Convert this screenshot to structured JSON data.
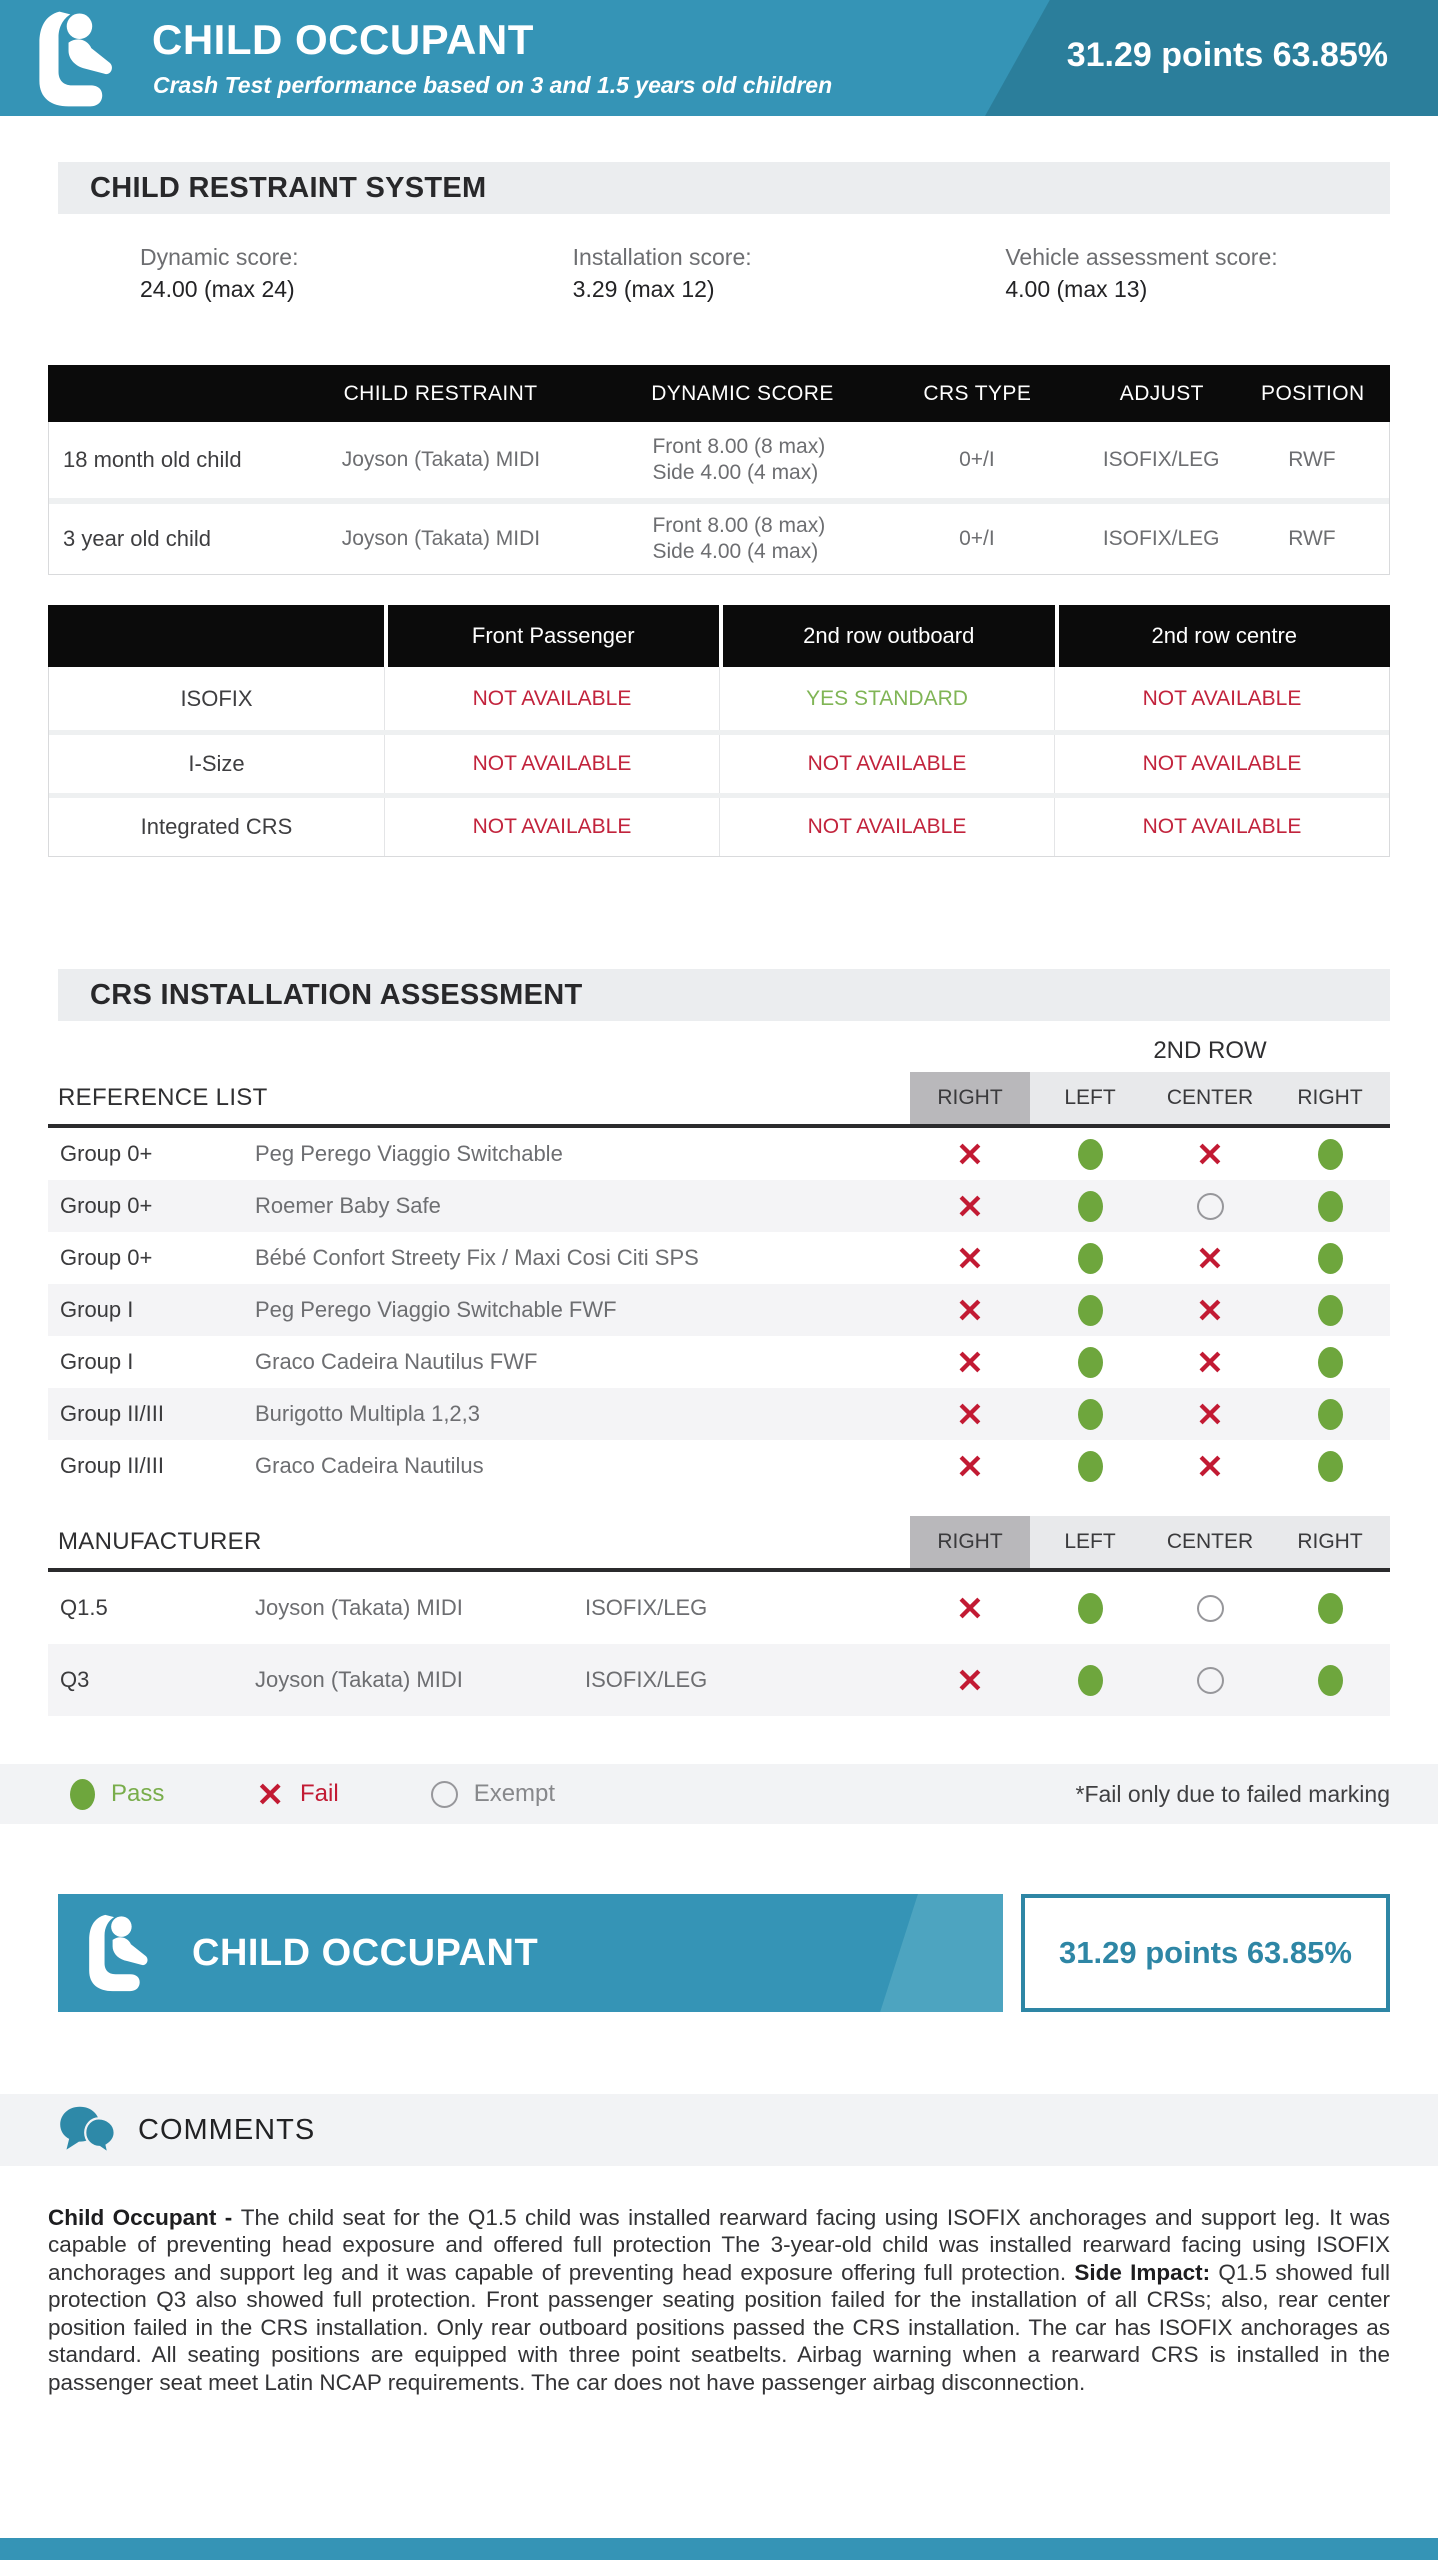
{
  "colors": {
    "accent_teal": "#3594b6",
    "accent_teal_dark": "#2b7e9b",
    "pass_green": "#6ea63d",
    "fail_red": "#c21a33",
    "yes_green": "#80b556",
    "not_available_red": "#c2233c"
  },
  "header": {
    "title": "CHILD OCCUPANT",
    "subtitle": "Crash Test performance based on 3 and 1.5 years old children",
    "score": "31.29 points 63.85%"
  },
  "crs_system": {
    "title": "CHILD RESTRAINT SYSTEM",
    "scores": [
      {
        "label": "Dynamic score:",
        "value": "24.00 (max 24)"
      },
      {
        "label": "Installation score:",
        "value": "3.29 (max 12)"
      },
      {
        "label": "Vehicle assessment score:",
        "value": "4.00 (max 13)"
      }
    ]
  },
  "restraint_table": {
    "headers": [
      "",
      "CHILD RESTRAINT",
      "DYNAMIC SCORE",
      "CRS TYPE",
      "ADJUST",
      "POSITION"
    ],
    "rows": [
      {
        "label": "18 month old child",
        "restraint": "Joyson (Takata) MIDI",
        "dynamic_front": "Front 8.00 (8 max)",
        "dynamic_side": "Side 4.00 (4 max)",
        "crs_type": "0+/I",
        "adjust": "ISOFIX/LEG",
        "position": "RWF"
      },
      {
        "label": "3 year old child",
        "restraint": "Joyson (Takata) MIDI",
        "dynamic_front": "Front 8.00 (8 max)",
        "dynamic_side": "Side 4.00 (4 max)",
        "crs_type": "0+/I",
        "adjust": "ISOFIX/LEG",
        "position": "RWF"
      }
    ]
  },
  "availability": {
    "headers": [
      "",
      "Front Passenger",
      "2nd row outboard",
      "2nd row centre"
    ],
    "rows": [
      {
        "label": "ISOFIX",
        "values": [
          {
            "text": "NOT AVAILABLE",
            "status": "no"
          },
          {
            "text": "YES STANDARD",
            "status": "yes"
          },
          {
            "text": "NOT AVAILABLE",
            "status": "no"
          }
        ]
      },
      {
        "label": "I-Size",
        "values": [
          {
            "text": "NOT AVAILABLE",
            "status": "no"
          },
          {
            "text": "NOT AVAILABLE",
            "status": "no"
          },
          {
            "text": "NOT AVAILABLE",
            "status": "no"
          }
        ]
      },
      {
        "label": "Integrated CRS",
        "values": [
          {
            "text": "NOT AVAILABLE",
            "status": "no"
          },
          {
            "text": "NOT AVAILABLE",
            "status": "no"
          },
          {
            "text": "NOT AVAILABLE",
            "status": "no"
          }
        ]
      }
    ]
  },
  "installation": {
    "title": "CRS INSTALLATION ASSESSMENT",
    "second_row_label": "2ND ROW",
    "reference": {
      "label": "REFERENCE LIST",
      "columns": [
        "RIGHT",
        "LEFT",
        "CENTER",
        "RIGHT"
      ],
      "rows": [
        {
          "group": "Group 0+",
          "name": "Peg Perego Viaggio Switchable",
          "marks": [
            "fail",
            "pass",
            "fail",
            "pass"
          ]
        },
        {
          "group": "Group 0+",
          "name": "Roemer Baby Safe",
          "marks": [
            "fail",
            "pass",
            "exempt",
            "pass"
          ]
        },
        {
          "group": "Group 0+",
          "name": "Bébé Confort Streety Fix / Maxi Cosi Citi SPS",
          "marks": [
            "fail",
            "pass",
            "fail",
            "pass"
          ]
        },
        {
          "group": "Group I",
          "name": "Peg Perego Viaggio Switchable FWF",
          "marks": [
            "fail",
            "pass",
            "fail",
            "pass"
          ]
        },
        {
          "group": "Group I",
          "name": "Graco Cadeira Nautilus FWF",
          "marks": [
            "fail",
            "pass",
            "fail",
            "pass"
          ]
        },
        {
          "group": "Group II/III",
          "name": "Burigotto Multipla 1,2,3",
          "marks": [
            "fail",
            "pass",
            "fail",
            "pass"
          ]
        },
        {
          "group": "Group II/III",
          "name": "Graco Cadeira Nautilus",
          "marks": [
            "fail",
            "pass",
            "fail",
            "pass"
          ]
        }
      ]
    },
    "manufacturer": {
      "label": "MANUFACTURER",
      "columns": [
        "RIGHT",
        "LEFT",
        "CENTER",
        "RIGHT"
      ],
      "rows": [
        {
          "group": "Q1.5",
          "name": "Joyson (Takata) MIDI",
          "adjust": "ISOFIX/LEG",
          "marks": [
            "fail",
            "pass",
            "exempt",
            "pass"
          ]
        },
        {
          "group": "Q3",
          "name": "Joyson (Takata) MIDI",
          "adjust": "ISOFIX/LEG",
          "marks": [
            "fail",
            "pass",
            "exempt",
            "pass"
          ]
        }
      ]
    }
  },
  "legend": {
    "pass_label": "Pass",
    "fail_label": "Fail",
    "exempt_label": "Exempt",
    "note": "*Fail only due to failed marking"
  },
  "footer_banner": {
    "title": "CHILD OCCUPANT",
    "score": "31.29 points 63.85%"
  },
  "comments": {
    "title": "COMMENTS",
    "bold1": "Child Occupant - ",
    "text1": "The child seat for the Q1.5 child was installed rearward facing using ISOFIX anchorages and support leg. It was capable of preventing head exposure and offered full protection The 3-year-old child was installed rearward facing using ISOFIX anchorages and support leg and it was capable of preventing head exposure offering full protection. ",
    "bold2": "Side Impact: ",
    "text2": "Q1.5 showed full protection Q3 also showed full protection. Front passenger seating position failed for the installation of all CRSs; also, rear center position failed in the CRS installation. Only rear outboard positions passed the CRS installation. The car has ISOFIX anchorages as standard. All seating positions are equipped with three point seatbelts. Airbag warning when a rearward CRS is installed in the passenger seat meet Latin NCAP requirements. The car does not have passenger airbag disconnection."
  }
}
